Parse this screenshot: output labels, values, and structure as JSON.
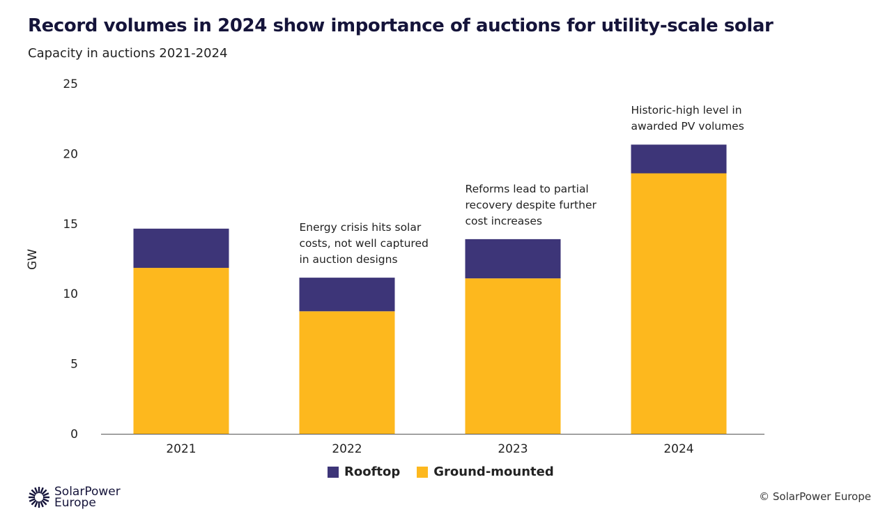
{
  "title": "Record volumes in 2024 show importance of auctions for utility-scale solar",
  "subtitle": "Capacity in auctions 2021-2024",
  "chart_data": {
    "type": "bar",
    "stacked": true,
    "categories": [
      "2021",
      "2022",
      "2023",
      "2024"
    ],
    "series": [
      {
        "name": "Ground-mounted",
        "color": "#fdb81e",
        "values": [
          11.85,
          8.75,
          11.1,
          18.6
        ]
      },
      {
        "name": "Rooftop",
        "color": "#3d3578",
        "values": [
          2.8,
          2.4,
          2.8,
          2.05
        ]
      }
    ],
    "ylabel": "GW",
    "ylim": [
      0,
      25
    ],
    "yticks": [
      "0",
      "5",
      "10",
      "15",
      "20",
      "25"
    ],
    "grid": false,
    "legend": "bottom",
    "annotations": [
      {
        "category": "2022",
        "text": "Energy crisis hits solar\ncosts, not well captured\nin auction designs"
      },
      {
        "category": "2023",
        "text": "Reforms lead to partial\nrecovery despite further\ncost increases"
      },
      {
        "category": "2024",
        "text": "Historic-high level in\nawarded PV volumes"
      }
    ]
  },
  "legend": {
    "rooftop": "Rooftop",
    "ground": "Ground-mounted"
  },
  "logo": {
    "line1": "SolarPower",
    "line2": "Europe"
  },
  "copyright": "© SolarPower Europe"
}
